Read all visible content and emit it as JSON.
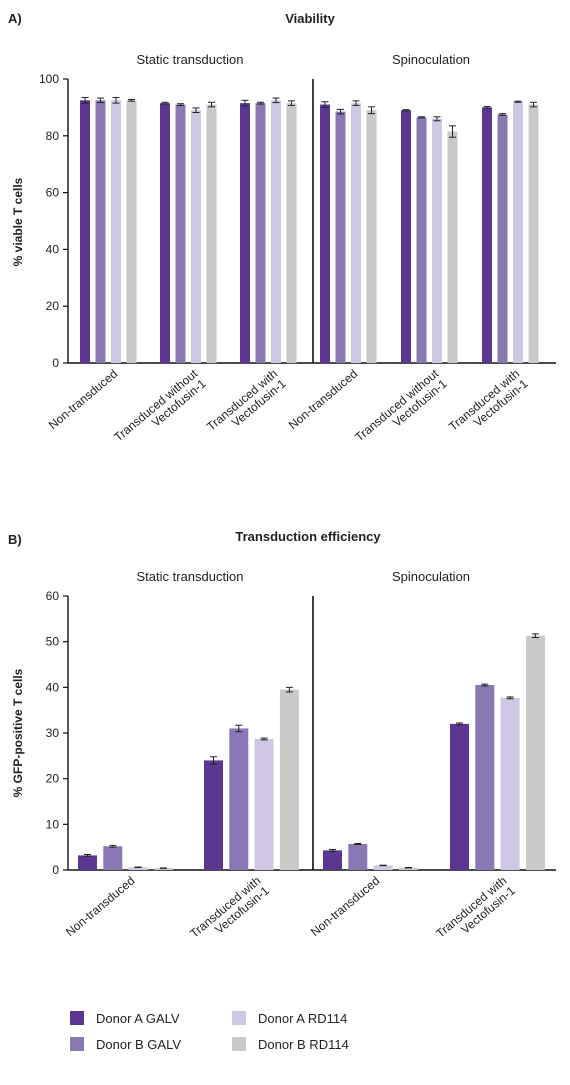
{
  "charts": [
    {
      "panel_label": "A)",
      "chart_data": {
        "type": "bar",
        "title": "Viability",
        "ylabel": "% viable T cells",
        "xlabel": "",
        "ylim": [
          0,
          100
        ],
        "yticks": [
          0,
          20,
          40,
          60,
          80,
          100
        ],
        "grid": false,
        "sections": [
          {
            "label": "Static transduction",
            "categories": [
              "Non-transduced",
              "Transduced without Vectofusin-1",
              "Transduced with Vectofusin-1"
            ],
            "series": [
              {
                "name": "Donor A GALV",
                "values": [
                  92.5,
                  91.5,
                  91.5
                ],
                "errors": [
                  1.0,
                  0.3,
                  1.0
                ]
              },
              {
                "name": "Donor B GALV",
                "values": [
                  92.5,
                  91.0,
                  91.5
                ],
                "errors": [
                  0.8,
                  0.3,
                  0.3
                ]
              },
              {
                "name": "Donor A RD114",
                "values": [
                  92.5,
                  89.0,
                  92.5
                ],
                "errors": [
                  1.0,
                  0.8,
                  0.8
                ]
              },
              {
                "name": "Donor B RD114",
                "values": [
                  92.5,
                  91.0,
                  91.5
                ],
                "errors": [
                  0.3,
                  0.8,
                  0.8
                ]
              }
            ]
          },
          {
            "label": "Spinoculation",
            "categories": [
              "Non-transduced",
              "Transduced without Vectofusin-1",
              "Transduced with Vectofusin-1"
            ],
            "series": [
              {
                "name": "Donor A GALV",
                "values": [
                  91.0,
                  89.0,
                  90.0
                ],
                "errors": [
                  1.0,
                  0.2,
                  0.3
                ]
              },
              {
                "name": "Donor B GALV",
                "values": [
                  88.5,
                  86.5,
                  87.5
                ],
                "errors": [
                  0.8,
                  0.2,
                  0.3
                ]
              },
              {
                "name": "Donor A RD114",
                "values": [
                  91.5,
                  86.0,
                  92.0
                ],
                "errors": [
                  0.8,
                  0.7,
                  0.2
                ]
              },
              {
                "name": "Donor B RD114",
                "values": [
                  89.0,
                  81.5,
                  91.0
                ],
                "errors": [
                  1.2,
                  2.0,
                  0.8
                ]
              }
            ]
          }
        ]
      }
    },
    {
      "panel_label": "B)",
      "chart_data": {
        "type": "bar",
        "title": "Transduction efficiency",
        "ylabel": "% GFP-positive T cells",
        "xlabel": "",
        "ylim": [
          0,
          60
        ],
        "yticks": [
          0,
          10,
          20,
          30,
          40,
          50,
          60
        ],
        "grid": false,
        "sections": [
          {
            "label": "Static transduction",
            "categories": [
              "Non-transduced",
              "Transduced with Vectofusin-1"
            ],
            "series": [
              {
                "name": "Donor A GALV",
                "values": [
                  3.2,
                  24.0
                ],
                "errors": [
                  0.2,
                  0.8
                ]
              },
              {
                "name": "Donor B GALV",
                "values": [
                  5.2,
                  31.0
                ],
                "errors": [
                  0.2,
                  0.7
                ]
              },
              {
                "name": "Donor A RD114",
                "values": [
                  0.6,
                  28.7
                ],
                "errors": [
                  0.05,
                  0.2
                ]
              },
              {
                "name": "Donor B RD114",
                "values": [
                  0.4,
                  39.5
                ],
                "errors": [
                  0.05,
                  0.5
                ]
              }
            ]
          },
          {
            "label": "Spinoculation",
            "categories": [
              "Non-transduced",
              "Transduced with Vectofusin-1"
            ],
            "series": [
              {
                "name": "Donor A GALV",
                "values": [
                  4.3,
                  32.0
                ],
                "errors": [
                  0.2,
                  0.2
                ]
              },
              {
                "name": "Donor B GALV",
                "values": [
                  5.7,
                  40.5
                ],
                "errors": [
                  0.1,
                  0.2
                ]
              },
              {
                "name": "Donor A RD114",
                "values": [
                  1.0,
                  37.7
                ],
                "errors": [
                  0.05,
                  0.2
                ]
              },
              {
                "name": "Donor B RD114",
                "values": [
                  0.5,
                  51.3
                ],
                "errors": [
                  0.05,
                  0.4
                ]
              }
            ]
          }
        ]
      }
    }
  ],
  "legend": {
    "items": [
      {
        "label": "Donor A GALV",
        "color": "#5b3791"
      },
      {
        "label": "Donor B GALV",
        "color": "#8a78b4"
      },
      {
        "label": "Donor A RD114",
        "color": "#cfc7e3"
      },
      {
        "label": "Donor B RD114",
        "color": "#c9c9c9"
      }
    ]
  }
}
